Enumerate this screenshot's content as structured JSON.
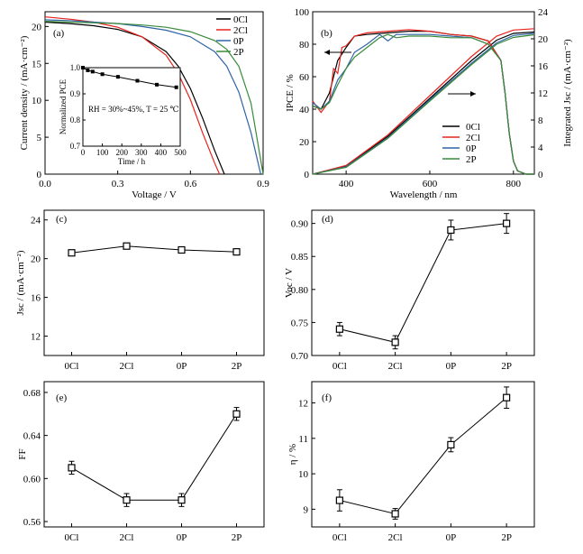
{
  "chart_data": [
    {
      "panel": "(a)",
      "type": "line",
      "xlabel": "Voltage / V",
      "ylabel": "Current density / (mA·cm⁻²)",
      "xlim": [
        0,
        0.9
      ],
      "ylim": [
        0,
        22
      ],
      "xticks": [
        0.0,
        0.3,
        0.6,
        0.9
      ],
      "yticks": [
        0,
        5,
        10,
        15,
        20
      ],
      "legend_position": "top-right",
      "series": [
        {
          "name": "0Cl",
          "color": "#000000",
          "x": [
            0,
            0.1,
            0.2,
            0.3,
            0.4,
            0.5,
            0.55,
            0.6,
            0.65,
            0.7,
            0.74
          ],
          "y": [
            20.6,
            20.4,
            20.1,
            19.6,
            18.6,
            16.6,
            14.6,
            11.6,
            7.6,
            3.2,
            0
          ]
        },
        {
          "name": "2Cl",
          "color": "#e8231d",
          "x": [
            0,
            0.1,
            0.2,
            0.3,
            0.4,
            0.5,
            0.55,
            0.6,
            0.65,
            0.7,
            0.72
          ],
          "y": [
            21.3,
            21.0,
            20.6,
            19.9,
            18.6,
            16.1,
            13.6,
            10.1,
            5.6,
            1.5,
            0
          ]
        },
        {
          "name": "0P",
          "color": "#2f64a7",
          "x": [
            0,
            0.1,
            0.2,
            0.3,
            0.4,
            0.5,
            0.6,
            0.7,
            0.75,
            0.8,
            0.85,
            0.89
          ],
          "y": [
            20.9,
            20.8,
            20.6,
            20.4,
            20.0,
            19.5,
            18.6,
            16.6,
            14.6,
            11.1,
            5.6,
            0
          ]
        },
        {
          "name": "2P",
          "color": "#3a8a3a",
          "x": [
            0,
            0.1,
            0.2,
            0.3,
            0.4,
            0.5,
            0.6,
            0.7,
            0.75,
            0.8,
            0.85,
            0.9
          ],
          "y": [
            20.7,
            20.6,
            20.5,
            20.4,
            20.2,
            19.9,
            19.3,
            18.1,
            16.9,
            14.6,
            9.6,
            0
          ]
        }
      ],
      "inset": {
        "type": "line",
        "xlabel": "Time / h",
        "ylabel": "Normalized PCE",
        "xlim": [
          0,
          500
        ],
        "ylim": [
          0.7,
          1.0
        ],
        "xticks": [
          0,
          100,
          200,
          300,
          400,
          500
        ],
        "yticks": [
          0.7,
          0.8,
          0.9,
          1.0
        ],
        "annotation": "RH = 30%~45%, T = 25 ℃",
        "x": [
          0,
          25,
          50,
          100,
          180,
          280,
          380,
          480
        ],
        "y": [
          1.0,
          0.99,
          0.985,
          0.975,
          0.965,
          0.95,
          0.935,
          0.925
        ]
      }
    },
    {
      "panel": "(b)",
      "type": "line",
      "xlabel": "Wavelength / nm",
      "ylabel": "IPCE / %",
      "ylabel_right": "Integrated Jsc / (mA·cm⁻²)",
      "xlim": [
        320,
        850
      ],
      "ylim": [
        0,
        100
      ],
      "ylim_right": [
        0,
        24
      ],
      "xticks": [
        400,
        600,
        800
      ],
      "yticks": [
        0,
        20,
        40,
        60,
        80,
        100
      ],
      "yticks_right": [
        0,
        4,
        8,
        12,
        16,
        20,
        24
      ],
      "legend_position": "bottom-right",
      "series": [
        {
          "name": "0Cl",
          "color": "#000000",
          "ipce_x": [
            320,
            340,
            360,
            380,
            400,
            420,
            450,
            500,
            550,
            600,
            650,
            700,
            740,
            770,
            780,
            790,
            800,
            810,
            830,
            850
          ],
          "ipce_y": [
            42,
            40,
            50,
            70,
            78,
            85,
            86,
            87,
            88,
            88,
            86,
            85,
            82,
            70,
            50,
            25,
            8,
            2,
            0,
            0
          ],
          "jsc_x": [
            320,
            400,
            500,
            600,
            700,
            760,
            800,
            850
          ],
          "jsc_y": [
            0,
            1.2,
            5.6,
            11.2,
            16.8,
            19.8,
            20.8,
            21.0
          ]
        },
        {
          "name": "2Cl",
          "color": "#e8231d",
          "ipce_x": [
            320,
            340,
            360,
            370,
            380,
            390,
            400,
            420,
            450,
            500,
            550,
            600,
            650,
            700,
            740,
            770,
            780,
            790,
            800,
            810,
            830,
            850
          ],
          "ipce_y": [
            45,
            38,
            45,
            65,
            62,
            78,
            79,
            85,
            87,
            88,
            89,
            88,
            86,
            85,
            82,
            70,
            50,
            25,
            8,
            2,
            0,
            0
          ],
          "jsc_x": [
            320,
            400,
            500,
            600,
            700,
            760,
            800,
            850
          ],
          "jsc_y": [
            0,
            1.3,
            5.8,
            11.6,
            17.4,
            20.4,
            21.3,
            21.5
          ]
        },
        {
          "name": "0P",
          "color": "#2f64a7",
          "ipce_x": [
            320,
            340,
            360,
            380,
            400,
            420,
            450,
            480,
            500,
            520,
            550,
            600,
            650,
            700,
            740,
            770,
            780,
            790,
            800,
            810,
            830,
            850
          ],
          "ipce_y": [
            44,
            40,
            45,
            58,
            65,
            75,
            80,
            86,
            82,
            86,
            86,
            86,
            85,
            84,
            80,
            70,
            50,
            25,
            8,
            2,
            0,
            0
          ],
          "jsc_x": [
            320,
            400,
            500,
            600,
            700,
            760,
            800,
            850
          ],
          "jsc_y": [
            0,
            1.1,
            5.4,
            11.0,
            16.4,
            19.4,
            20.5,
            20.8
          ]
        },
        {
          "name": "2P",
          "color": "#3a8a3a",
          "ipce_x": [
            320,
            340,
            360,
            380,
            400,
            420,
            450,
            480,
            500,
            520,
            550,
            600,
            650,
            700,
            740,
            770,
            780,
            790,
            800,
            810,
            830,
            850
          ],
          "ipce_y": [
            42,
            40,
            44,
            55,
            65,
            72,
            78,
            84,
            86,
            84,
            85,
            85,
            84,
            84,
            80,
            70,
            50,
            25,
            8,
            2,
            0,
            0
          ],
          "jsc_x": [
            320,
            400,
            500,
            600,
            700,
            760,
            800,
            850
          ],
          "jsc_y": [
            0,
            1.0,
            5.3,
            10.8,
            16.2,
            19.2,
            20.2,
            20.6
          ]
        }
      ]
    },
    {
      "panel": "(c)",
      "type": "line",
      "ylabel": "Jsc / (mA·cm⁻²)",
      "categories": [
        "0Cl",
        "2Cl",
        "0P",
        "2P"
      ],
      "ylim": [
        10,
        25
      ],
      "yticks": [
        12,
        16,
        20,
        24
      ],
      "values": [
        20.6,
        21.3,
        20.9,
        20.7
      ],
      "errors": [
        0.1,
        0.1,
        0.1,
        0.1
      ]
    },
    {
      "panel": "(d)",
      "type": "line",
      "ylabel": "Voc / V",
      "categories": [
        "0Cl",
        "2Cl",
        "0P",
        "2P"
      ],
      "ylim": [
        0.7,
        0.92
      ],
      "yticks": [
        0.7,
        0.75,
        0.8,
        0.85,
        0.9
      ],
      "values": [
        0.74,
        0.72,
        0.89,
        0.9
      ],
      "errors": [
        0.01,
        0.01,
        0.015,
        0.015
      ]
    },
    {
      "panel": "(e)",
      "type": "line",
      "ylabel": "FF",
      "categories": [
        "0Cl",
        "2Cl",
        "0P",
        "2P"
      ],
      "ylim": [
        0.555,
        0.69
      ],
      "yticks": [
        0.56,
        0.6,
        0.64,
        0.68
      ],
      "values": [
        0.61,
        0.58,
        0.58,
        0.66
      ],
      "errors": [
        0.006,
        0.006,
        0.006,
        0.006
      ]
    },
    {
      "panel": "(f)",
      "type": "line",
      "ylabel": "η / %",
      "categories": [
        "0Cl",
        "2Cl",
        "0P",
        "2P"
      ],
      "ylim": [
        8.5,
        12.6
      ],
      "yticks": [
        9,
        10,
        11,
        12
      ],
      "values": [
        9.25,
        8.87,
        10.82,
        12.15
      ],
      "errors": [
        0.3,
        0.15,
        0.2,
        0.3
      ]
    }
  ]
}
